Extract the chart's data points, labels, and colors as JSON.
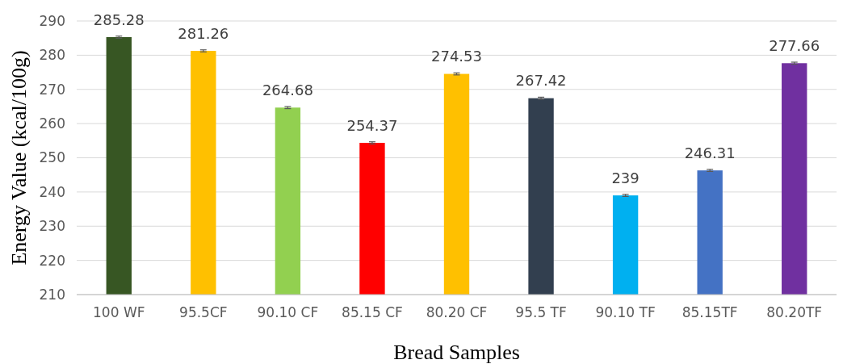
{
  "chart_data": {
    "type": "bar",
    "xlabel": "Bread Samples",
    "ylabel": "Energy Value (kcal/100g)",
    "categories": [
      "100 WF",
      "95.5CF",
      "90.10 CF",
      "85.15 CF",
      "80.20 CF",
      "95.5 TF",
      "90.10 TF",
      "85.15TF",
      "80.20TF"
    ],
    "values": [
      285.28,
      281.26,
      264.68,
      254.37,
      274.53,
      267.42,
      239,
      246.31,
      277.66
    ],
    "colors": [
      "#375623",
      "#ffc000",
      "#92d050",
      "#ff0000",
      "#ffc000",
      "#323f4f",
      "#00b0f0",
      "#4472c4",
      "#7030a0"
    ],
    "errors": [
      0.3,
      0.3,
      0.3,
      0.3,
      0.3,
      0.3,
      0.3,
      0.3,
      0.3
    ],
    "ylim": [
      210,
      290
    ],
    "yticks": [
      210,
      220,
      230,
      240,
      250,
      260,
      270,
      280,
      290
    ],
    "grid": "y",
    "data_labels": true
  }
}
